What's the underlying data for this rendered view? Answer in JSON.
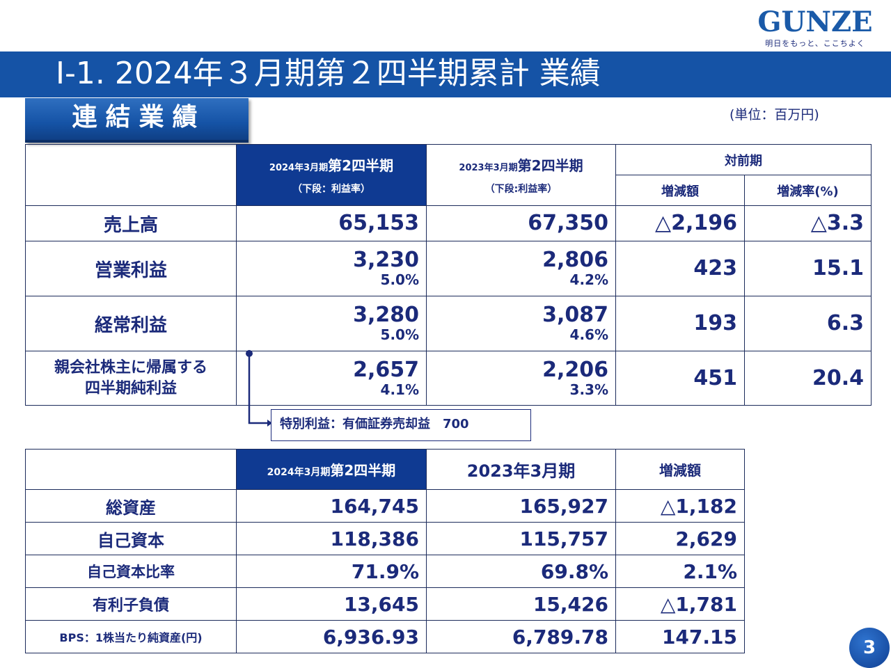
{
  "logo": {
    "word": "GUNZE",
    "tagline": "明日をもっと、ここちよく"
  },
  "title": "Ⅰ-1. 2024年３月期第２四半期累計 業績",
  "section_label": "連結業績",
  "unit_note": "(単位：百万円)",
  "table1": {
    "headers": {
      "current_prefix": "2024年3月期",
      "current_suffix": "第2四半期",
      "current_sub": "（下段：利益率）",
      "prior_prefix": "2023年3月期",
      "prior_suffix": "第2四半期",
      "prior_sub": "（下段:利益率）",
      "yoy": "対前期",
      "change": "増減額",
      "change_rate": "増減率(%)"
    },
    "rows": [
      {
        "label": "売上高",
        "current": "65,153",
        "current_margin": "",
        "prior": "67,350",
        "prior_margin": "",
        "change": "△2,196",
        "rate": "△3.3"
      },
      {
        "label": "営業利益",
        "current": "3,230",
        "current_margin": "5.0%",
        "prior": "2,806",
        "prior_margin": "4.2%",
        "change": "423",
        "rate": "15.1"
      },
      {
        "label": "経常利益",
        "current": "3,280",
        "current_margin": "5.0%",
        "prior": "3,087",
        "prior_margin": "4.6%",
        "change": "193",
        "rate": "6.3"
      },
      {
        "label_line1": "親会社株主に帰属する",
        "label_line2": "四半期純利益",
        "current": "2,657",
        "current_margin": "4.1%",
        "prior": "2,206",
        "prior_margin": "3.3%",
        "change": "451",
        "rate": "20.4"
      }
    ]
  },
  "note": "特別利益：有価証券売却益　700",
  "table2": {
    "headers": {
      "current_prefix": "2024年3月期",
      "current_suffix": "第2四半期",
      "prior": "2023年3月期",
      "change": "増減額"
    },
    "rows": [
      {
        "label": "総資産",
        "current": "164,745",
        "prior": "165,927",
        "change": "△1,182"
      },
      {
        "label": "自己資本",
        "current": "118,386",
        "prior": "115,757",
        "change": "2,629"
      },
      {
        "label": "自己資本比率",
        "current": "71.9%",
        "prior": "69.8%",
        "change": "2.1%"
      },
      {
        "label": "有利子負債",
        "current": "13,645",
        "prior": "15,426",
        "change": "△1,781"
      },
      {
        "label": "BPS：1株当たり純資産(円)",
        "current": "6,936.93",
        "prior": "6,789.78",
        "change": "147.15"
      }
    ]
  },
  "page_number": "3",
  "colors": {
    "title_bar": "#1553a6",
    "header_highlight": "#0f3a92",
    "text": "#1b2a7a"
  }
}
